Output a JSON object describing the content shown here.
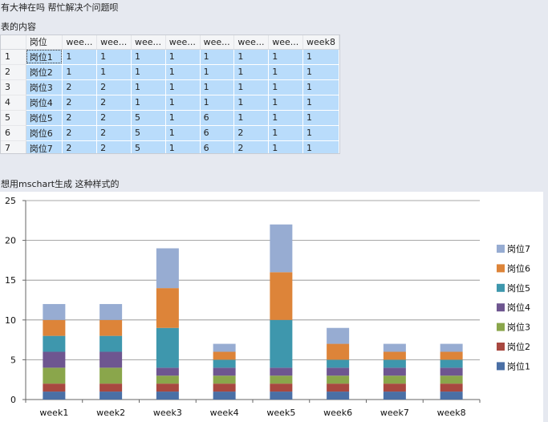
{
  "question_title": "有大神在吗 帮忙解决个问题呗",
  "table_label": "表的内容",
  "chart_label": "想用mschart生成 这种样式的",
  "table": {
    "headers": [
      "岗位",
      "wee...",
      "wee...",
      "wee...",
      "wee...",
      "wee...",
      "wee...",
      "wee...",
      "week8"
    ],
    "rows": [
      {
        "num": "1",
        "cells": [
          "岗位1",
          "1",
          "1",
          "1",
          "1",
          "1",
          "1",
          "1",
          "1"
        ]
      },
      {
        "num": "2",
        "cells": [
          "岗位2",
          "1",
          "1",
          "1",
          "1",
          "1",
          "1",
          "1",
          "1"
        ]
      },
      {
        "num": "3",
        "cells": [
          "岗位3",
          "2",
          "2",
          "1",
          "1",
          "1",
          "1",
          "1",
          "1"
        ]
      },
      {
        "num": "4",
        "cells": [
          "岗位4",
          "2",
          "2",
          "1",
          "1",
          "1",
          "1",
          "1",
          "1"
        ]
      },
      {
        "num": "5",
        "cells": [
          "岗位5",
          "2",
          "2",
          "5",
          "1",
          "6",
          "1",
          "1",
          "1"
        ]
      },
      {
        "num": "6",
        "cells": [
          "岗位6",
          "2",
          "2",
          "5",
          "1",
          "6",
          "2",
          "1",
          "1"
        ]
      },
      {
        "num": "7",
        "cells": [
          "岗位7",
          "2",
          "2",
          "5",
          "1",
          "6",
          "2",
          "1",
          "1"
        ]
      }
    ]
  },
  "chart_data": {
    "type": "bar",
    "stacked": true,
    "categories": [
      "week1",
      "week2",
      "week3",
      "week4",
      "week5",
      "week6",
      "week7",
      "week8"
    ],
    "series": [
      {
        "name": "岗位1",
        "color": "#4a6fa5",
        "values": [
          1,
          1,
          1,
          1,
          1,
          1,
          1,
          1
        ]
      },
      {
        "name": "岗位2",
        "color": "#a84840",
        "values": [
          1,
          1,
          1,
          1,
          1,
          1,
          1,
          1
        ]
      },
      {
        "name": "岗位3",
        "color": "#8aa64b",
        "values": [
          2,
          2,
          1,
          1,
          1,
          1,
          1,
          1
        ]
      },
      {
        "name": "岗位4",
        "color": "#6e5690",
        "values": [
          2,
          2,
          1,
          1,
          1,
          1,
          1,
          1
        ]
      },
      {
        "name": "岗位5",
        "color": "#3e97ad",
        "values": [
          2,
          2,
          5,
          1,
          6,
          1,
          1,
          1
        ]
      },
      {
        "name": "岗位6",
        "color": "#dd8439",
        "values": [
          2,
          2,
          5,
          1,
          6,
          2,
          1,
          1
        ]
      },
      {
        "name": "岗位7",
        "color": "#97acd2",
        "values": [
          2,
          2,
          5,
          1,
          6,
          2,
          1,
          1
        ]
      }
    ],
    "ylim": [
      0,
      25
    ],
    "yticks": [
      "0",
      "5",
      "10",
      "15",
      "20",
      "25"
    ],
    "grid": true,
    "legend": "right"
  }
}
